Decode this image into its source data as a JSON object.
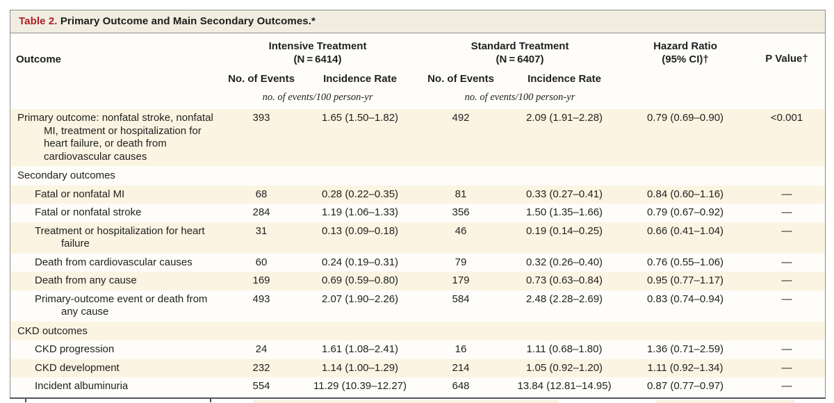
{
  "title": {
    "label": "Table 2.",
    "text": " Primary Outcome and Main Secondary Outcomes.*"
  },
  "header": {
    "outcome": "Outcome",
    "group_intensive_line1": "Intensive Treatment",
    "group_intensive_line2": "(N = 6414)",
    "group_standard_line1": "Standard Treatment",
    "group_standard_line2": "(N = 6407)",
    "sub_events_1": "No. of Events",
    "sub_rate_1": "Incidence Rate",
    "sub_events_2": "No. of Events",
    "sub_rate_2": "Incidence Rate",
    "units_1": "no. of events/100 person-yr",
    "units_2": "no. of events/100 person-yr",
    "hazard_line1": "Hazard Ratio",
    "hazard_line2": "(95% CI)†",
    "pvalue": "P Value†"
  },
  "rows": [
    {
      "label": "Primary outcome: nonfatal stroke, nonfatal MI, treatment or hospitalization for heart failure, or death from cardiovas­cular causes",
      "top": true,
      "hang": true,
      "shaded": true,
      "section": false,
      "events_i": "393",
      "rate_i": "1.65 (1.50–1.82)",
      "events_s": "492",
      "rate_s": "2.09 (1.91–2.28)",
      "hr": "0.79 (0.69–0.90)",
      "p": "<0.001"
    },
    {
      "label": "Secondary outcomes",
      "section": true,
      "shaded": false
    },
    {
      "label": "Fatal or nonfatal MI",
      "section": false,
      "shaded": true,
      "events_i": "68",
      "rate_i": "0.28 (0.22–0.35)",
      "events_s": "81",
      "rate_s": "0.33 (0.27–0.41)",
      "hr": "0.84 (0.60–1.16)",
      "p": "—"
    },
    {
      "label": "Fatal or nonfatal stroke",
      "section": false,
      "shaded": false,
      "events_i": "284",
      "rate_i": "1.19 (1.06–1.33)",
      "events_s": "356",
      "rate_s": "1.50 (1.35–1.66)",
      "hr": "0.79 (0.67–0.92)",
      "p": "—"
    },
    {
      "label": "Treatment or hospitalization for heart failure",
      "hang": true,
      "section": false,
      "shaded": true,
      "events_i": "31",
      "rate_i": "0.13 (0.09–0.18)",
      "events_s": "46",
      "rate_s": "0.19 (0.14–0.25)",
      "hr": "0.66 (0.41–1.04)",
      "p": "—"
    },
    {
      "label": "Death from cardiovascular causes",
      "section": false,
      "shaded": false,
      "events_i": "60",
      "rate_i": "0.24 (0.19–0.31)",
      "events_s": "79",
      "rate_s": "0.32 (0.26–0.40)",
      "hr": "0.76 (0.55–1.06)",
      "p": "—"
    },
    {
      "label": "Death from any cause",
      "section": false,
      "shaded": true,
      "events_i": "169",
      "rate_i": "0.69 (0.59–0.80)",
      "events_s": "179",
      "rate_s": "0.73 (0.63–0.84)",
      "hr": "0.95 (0.77–1.17)",
      "p": "—"
    },
    {
      "label": "Primary-outcome event or death from any cause",
      "hang": true,
      "section": false,
      "shaded": false,
      "events_i": "493",
      "rate_i": "2.07 (1.90–2.26)",
      "events_s": "584",
      "rate_s": "2.48 (2.28–2.69)",
      "hr": "0.83 (0.74–0.94)",
      "p": "—"
    },
    {
      "label": "CKD outcomes",
      "section": true,
      "shaded": true
    },
    {
      "label": "CKD progression",
      "section": false,
      "shaded": false,
      "events_i": "24",
      "rate_i": "1.61 (1.08–2.41)",
      "events_s": "16",
      "rate_s": "1.11 (0.68–1.80)",
      "hr": "1.36 (0.71–2.59)",
      "p": "—"
    },
    {
      "label": "CKD development",
      "section": false,
      "shaded": true,
      "events_i": "232",
      "rate_i": "1.14 (1.00–1.29)",
      "events_s": "214",
      "rate_s": "1.05 (0.92–1.20)",
      "hr": "1.11 (0.92–1.34)",
      "p": "—"
    },
    {
      "label": "Incident albuminuria",
      "section": false,
      "shaded": false,
      "events_i": "554",
      "rate_i": "11.29 (10.39–12.27)",
      "events_s": "648",
      "rate_s": "13.84 (12.81–14.95)",
      "hr": "0.87 (0.77–0.97)",
      "p": "—"
    }
  ],
  "colors": {
    "title_red": "#b01e28",
    "title_bar_bg": "#f1ede1",
    "shaded_row_bg": "#fbf4e2",
    "border_gray": "#8e8e88",
    "bottom_rule": "#55565a",
    "text": "#212121"
  }
}
